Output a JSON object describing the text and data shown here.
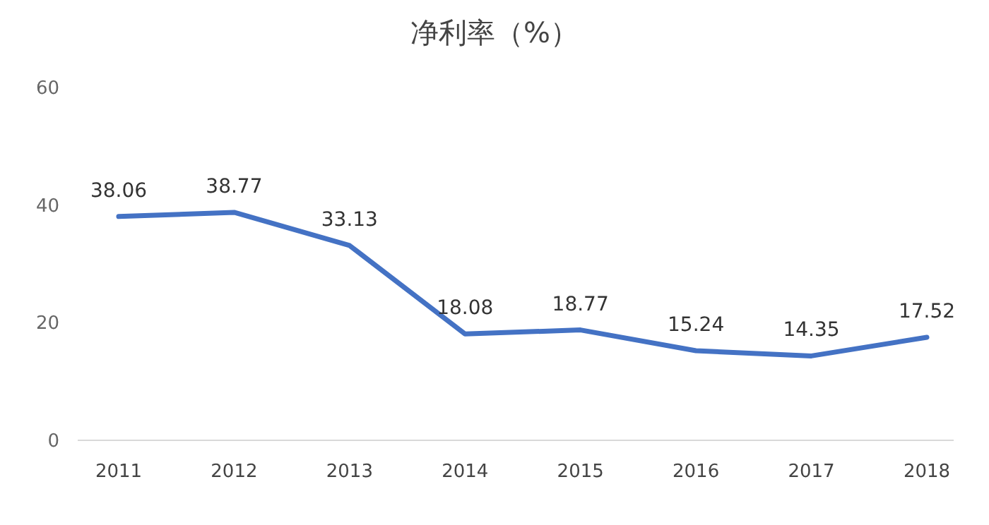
{
  "chart_data": {
    "type": "line",
    "title": "净利率（%）",
    "categories": [
      "2011",
      "2012",
      "2013",
      "2014",
      "2015",
      "2016",
      "2017",
      "2018"
    ],
    "series": [
      {
        "color": "#4472c4",
        "values": [
          38.06,
          38.77,
          33.13,
          18.08,
          18.77,
          15.24,
          14.35,
          17.52
        ]
      }
    ],
    "ylim": [
      0,
      60
    ],
    "yticks": [
      0,
      20,
      40,
      60
    ],
    "grid": false,
    "marker": "none",
    "line_style": "solid",
    "data_labels": true
  }
}
